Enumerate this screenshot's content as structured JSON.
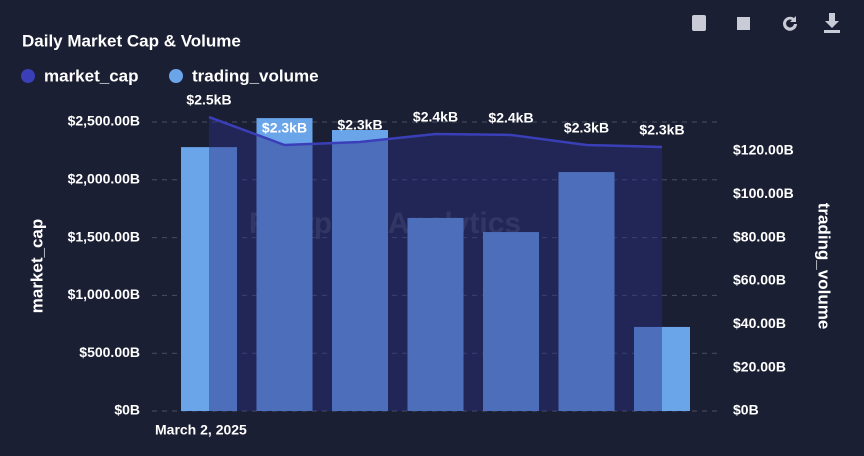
{
  "chart_data": {
    "type": "bar-line",
    "title": "Daily Market Cap & Volume",
    "watermark": "Footprint Analytics",
    "categories": [
      "March 2, 2025",
      null,
      null,
      null,
      null,
      null,
      null
    ],
    "series": [
      {
        "name": "market_cap",
        "type": "line",
        "color": "#3a3fb8",
        "axis": "y",
        "values": [
          2543,
          2301,
          2327,
          2396,
          2388,
          2301,
          2284
        ],
        "value_labels": [
          "$2.5kB",
          "$2.3kB",
          "$2.3kB",
          "$2.4kB",
          "$2.4kB",
          "$2.3kB",
          "$2.3kB"
        ]
      },
      {
        "name": "trading_volume",
        "type": "bar",
        "color": "#6aa5ea",
        "axis": "y2",
        "values": [
          121.8,
          135.2,
          129.7,
          89.1,
          82.6,
          110.3,
          38.8
        ]
      }
    ],
    "ylabel": "market_cap",
    "y2label": "trading_volume",
    "ylim": [
      0,
      2500
    ],
    "yticks": [
      {
        "value": 0,
        "label": "$0B"
      },
      {
        "value": 500,
        "label": "$500.00B"
      },
      {
        "value": 1000,
        "label": "$1,000.00B"
      },
      {
        "value": 1500,
        "label": "$1,500.00B"
      },
      {
        "value": 2000,
        "label": "$2,000.00B"
      },
      {
        "value": 2500,
        "label": "$2,500.00B"
      }
    ],
    "y2lim": [
      0,
      133.4
    ],
    "y2ticks": [
      {
        "value": 0,
        "label": "$0B"
      },
      {
        "value": 20,
        "label": "$20.00B"
      },
      {
        "value": 40,
        "label": "$40.00B"
      },
      {
        "value": 60,
        "label": "$60.00B"
      },
      {
        "value": 80,
        "label": "$80.00B"
      },
      {
        "value": 100,
        "label": "$100.00B"
      },
      {
        "value": 120,
        "label": "$120.00B"
      }
    ],
    "grid": true,
    "legend": "top-left"
  }
}
